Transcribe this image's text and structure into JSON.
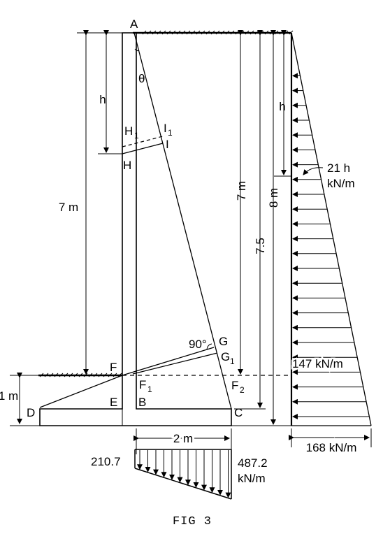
{
  "points": {
    "A": "A",
    "B": "B",
    "C": "C",
    "D": "D",
    "E": "E",
    "F": "F",
    "F1": "F",
    "F1_sub": "1",
    "F2": "F",
    "F2_sub": "2",
    "G": "G",
    "G1": "G",
    "G1_sub": "1",
    "H": "H",
    "H1": "H",
    "H1_sub": "1",
    "I": "I",
    "I1": "I",
    "I1_sub": "1"
  },
  "angles": {
    "theta": "θ",
    "right_angle": "90°"
  },
  "dimensions": {
    "h_left": "h",
    "h_right": "h",
    "wall_height_left": "7 m",
    "wall_height_right": "7 m",
    "height_7_5": "7.5",
    "height_8m": "8 m",
    "soil_depth": "1 m",
    "base_width": "2 m"
  },
  "pressure": {
    "at_depth_h_line1": "21 h",
    "at_depth_h_line2": "kN/m",
    "at_F_level": "147 kN/m",
    "at_base": "168 kN/m",
    "base_left": "210.7",
    "base_right_line1": "487.2",
    "base_right_line2": "kN/m"
  },
  "caption": "FIG 3"
}
